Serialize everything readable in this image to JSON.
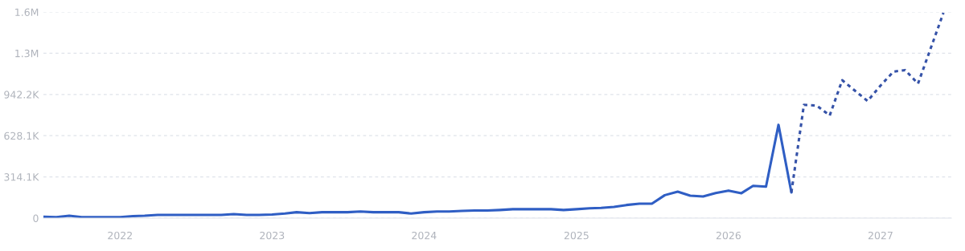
{
  "chart_data": {
    "type": "line",
    "xlim": [
      "2021-07-01",
      "2027-06-20"
    ],
    "xticks": [
      {
        "value": "2022-01",
        "label": "2022"
      },
      {
        "value": "2023-01",
        "label": "2023"
      },
      {
        "value": "2024-01",
        "label": "2024"
      },
      {
        "value": "2025-01",
        "label": "2025"
      },
      {
        "value": "2026-01",
        "label": "2026"
      },
      {
        "value": "2027-01",
        "label": "2027"
      }
    ],
    "ylim": [
      0,
      1570400
    ],
    "yticks": [
      0,
      {
        "value": 314100,
        "label": "314.1K"
      },
      {
        "value": 628100,
        "label": "628.1K"
      },
      {
        "value": 942200,
        "label": "942.2K"
      },
      {
        "value": 1256300,
        "label": "1.3M"
      },
      {
        "value": 1570400,
        "label": "1.6M"
      }
    ],
    "grid": "y",
    "series": [
      {
        "color": "#2f5ec4",
        "line_style": "solid",
        "x": [
          "2021-07",
          "2021-08",
          "2021-09",
          "2021-10",
          "2021-11",
          "2021-12",
          "2022-01",
          "2022-02",
          "2022-03",
          "2022-04",
          "2022-05",
          "2022-06",
          "2022-07",
          "2022-08",
          "2022-09",
          "2022-10",
          "2022-11",
          "2022-12",
          "2023-01",
          "2023-02",
          "2023-03",
          "2023-04",
          "2023-05",
          "2023-06",
          "2023-07",
          "2023-08",
          "2023-09",
          "2023-10",
          "2023-11",
          "2023-12",
          "2024-01",
          "2024-02",
          "2024-03",
          "2024-04",
          "2024-05",
          "2024-06",
          "2024-07",
          "2024-08",
          "2024-09",
          "2024-10",
          "2024-11",
          "2024-12",
          "2025-01",
          "2025-02",
          "2025-03",
          "2025-04",
          "2025-05",
          "2025-06",
          "2025-07",
          "2025-08",
          "2025-09",
          "2025-10",
          "2025-11",
          "2025-12",
          "2026-01",
          "2026-02",
          "2026-03",
          "2026-04",
          "2026-05",
          "2026-06"
        ],
        "values": [
          10000,
          8000,
          18000,
          8000,
          8000,
          8000,
          8000,
          15000,
          18000,
          25000,
          25000,
          25000,
          25000,
          25000,
          25000,
          30000,
          25000,
          25000,
          28000,
          35000,
          45000,
          38000,
          45000,
          45000,
          45000,
          50000,
          45000,
          45000,
          45000,
          35000,
          45000,
          50000,
          50000,
          55000,
          58000,
          58000,
          62000,
          68000,
          68000,
          68000,
          68000,
          62000,
          68000,
          75000,
          78000,
          85000,
          100000,
          110000,
          110000,
          175000,
          202000,
          171000,
          165000,
          191000,
          210000,
          190000,
          246000,
          240000,
          711000,
          196000
        ]
      },
      {
        "color": "#3552a8",
        "line_style": "dotted",
        "x": [
          "2026-06",
          "2026-07",
          "2026-08",
          "2026-09",
          "2026-10",
          "2026-11",
          "2026-12",
          "2027-01",
          "2027-02",
          "2027-03",
          "2027-04",
          "2027-06"
        ],
        "values": [
          196000,
          863000,
          857000,
          782000,
          1051000,
          970000,
          892000,
          1010000,
          1116000,
          1128000,
          1025000,
          1564000
        ]
      }
    ]
  }
}
